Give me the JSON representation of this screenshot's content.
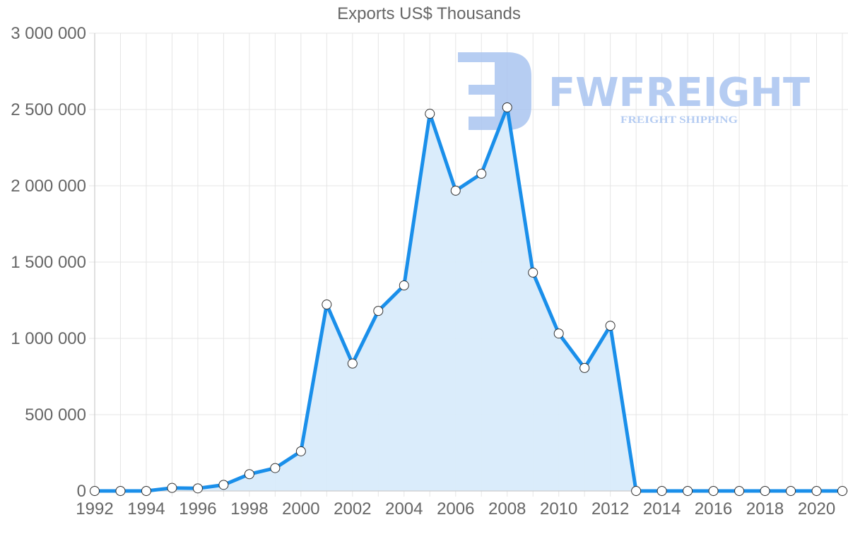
{
  "chart_data": {
    "type": "line",
    "title": "Exports US$ Thousands",
    "xlabel": "",
    "ylabel": "",
    "ylim": [
      0,
      3000000
    ],
    "xlim": [
      1992,
      2021
    ],
    "grid": true,
    "legend": null,
    "fill": true,
    "colors": {
      "line": "#1a8fea",
      "fill": "#d8ebfb",
      "point_fill": "#ffffff",
      "point_border": "#333333",
      "grid": "#e5e5e5",
      "text": "#666666"
    },
    "y_ticks": [
      "0",
      "500 000",
      "1 000 000",
      "1 500 000",
      "2 000 000",
      "2 500 000",
      "3 000 000"
    ],
    "y_tick_values": [
      0,
      500000,
      1000000,
      1500000,
      2000000,
      2500000,
      3000000
    ],
    "x_tick_labels": [
      "1992",
      "1994",
      "1996",
      "1998",
      "2000",
      "2002",
      "2004",
      "2006",
      "2008",
      "2010",
      "2012",
      "2014",
      "2016",
      "2018",
      "2020"
    ],
    "x": [
      1992,
      1993,
      1994,
      1995,
      1996,
      1997,
      1998,
      1999,
      2000,
      2001,
      2002,
      2003,
      2004,
      2005,
      2006,
      2007,
      2008,
      2009,
      2010,
      2011,
      2012,
      2013,
      2014,
      2015,
      2016,
      2017,
      2018,
      2019,
      2020,
      2021
    ],
    "series": [
      {
        "name": "Exports US$ Thousands",
        "values": [
          0,
          0,
          0,
          20000,
          17000,
          40000,
          110000,
          150000,
          260000,
          1222000,
          835000,
          1180000,
          1347000,
          2472000,
          1968000,
          2079000,
          2514000,
          1431000,
          1032000,
          806000,
          1083000,
          0,
          0,
          0,
          0,
          0,
          0,
          0,
          0,
          0
        ]
      }
    ]
  },
  "watermark": {
    "brand": "FWFREIGHT",
    "tagline": "FREIGHT SHIPPING",
    "color": "#a9c4f0"
  }
}
